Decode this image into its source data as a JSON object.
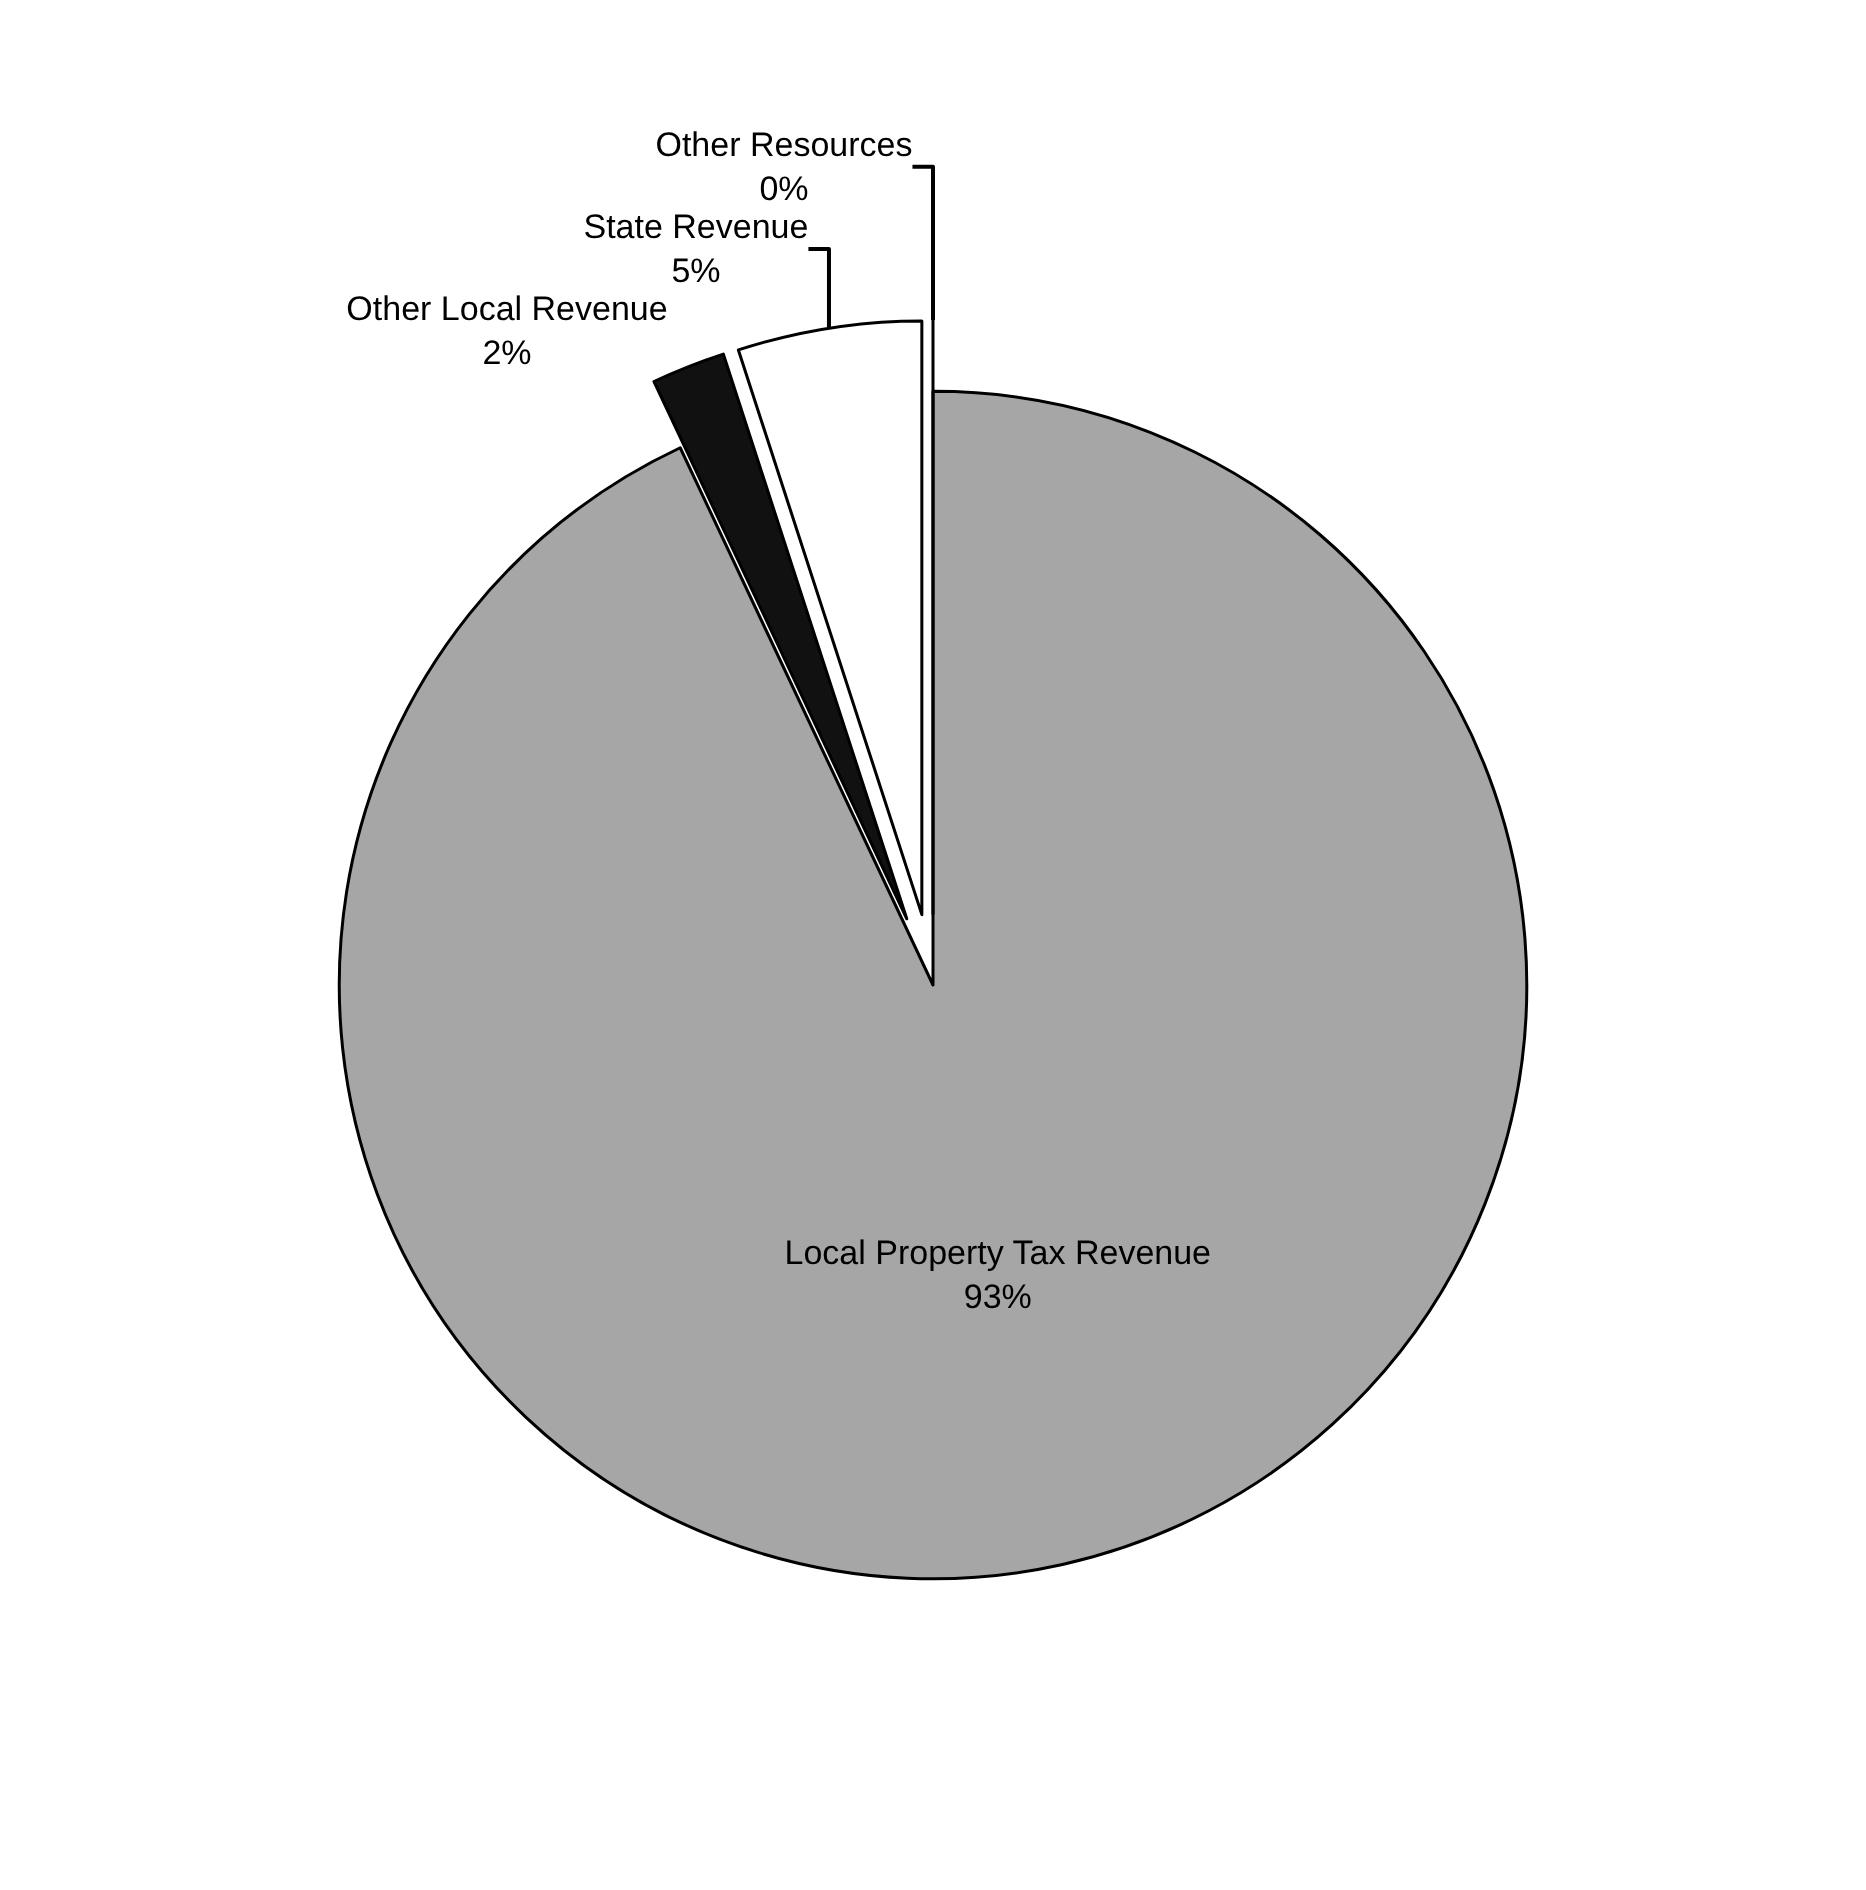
{
  "chart_data": {
    "type": "pie",
    "categories": [
      "Local Property Tax Revenue",
      "Other Local Revenue",
      "State Revenue",
      "Other Resources"
    ],
    "values": [
      93,
      2,
      5,
      0
    ],
    "colors": [
      "#a6a6a6",
      "#111111",
      "#ffffff",
      "#ffffff"
    ],
    "value_labels": [
      "93%",
      "2%",
      "5%",
      "0%"
    ]
  }
}
